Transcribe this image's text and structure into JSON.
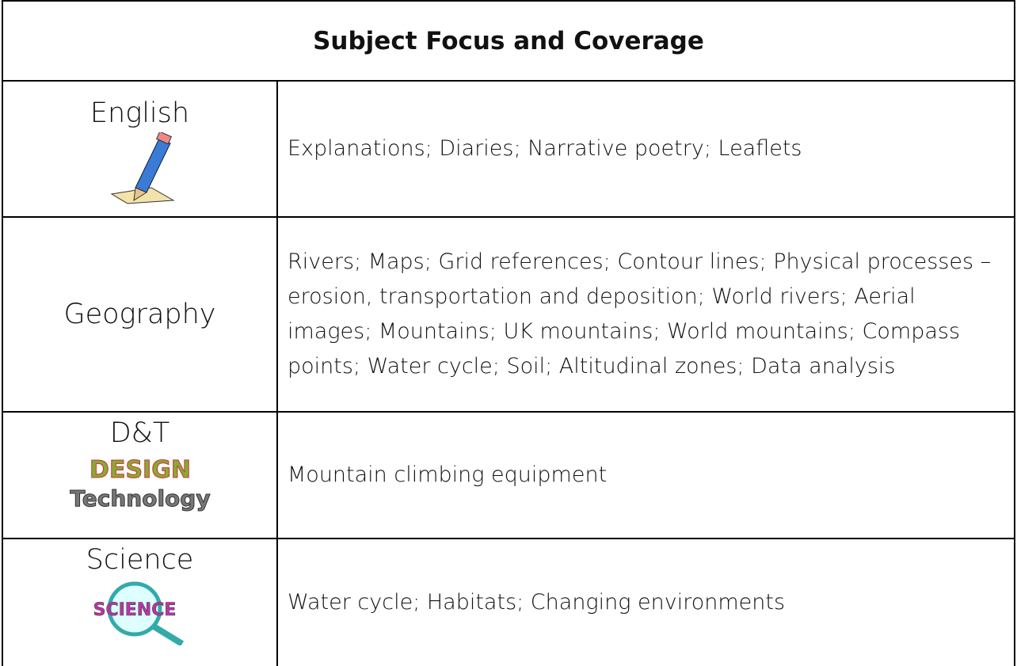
{
  "header": {
    "title": "Subject Focus and Coverage"
  },
  "table": {
    "rows": [
      {
        "subject": "English",
        "content": "Explanations; Diaries; Narrative poetry; Leaflets"
      },
      {
        "subject": "Geography",
        "content": "Rivers; Maps; Grid references; Contour lines; Physical processes – erosion, transportation and deposition; World rivers; Aerial images; Mountains; UK mountains; World mountains; Compass points; Water cycle; Soil; Altitudinal zones; Data analysis"
      },
      {
        "subject": "D&T",
        "content": "Mountain climbing equipment",
        "logo": [
          "DESIGN",
          "Technology"
        ]
      },
      {
        "subject": "Science",
        "content": "Water cycle; Habitats; Changing environments",
        "logo": [
          "SCIENCE"
        ]
      }
    ]
  }
}
